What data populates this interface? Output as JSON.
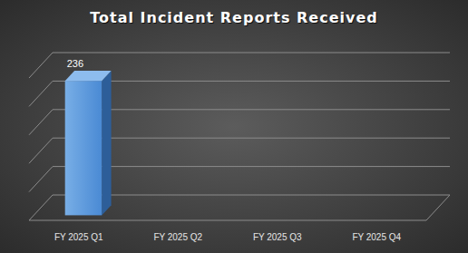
{
  "chart_data": {
    "type": "bar",
    "title": "Total Incident Reports Received",
    "categories": [
      "FY 2025 Q1",
      "FY 2025 Q2",
      "FY 2025 Q3",
      "FY 2025 Q4"
    ],
    "values": [
      236,
      null,
      null,
      null
    ],
    "color": "#4a8ad4",
    "ylim": [
      0,
      250
    ],
    "yticks": [
      0,
      50,
      100,
      150,
      200,
      250
    ],
    "grid": true,
    "data_labels": true,
    "tick_labels": "x"
  }
}
